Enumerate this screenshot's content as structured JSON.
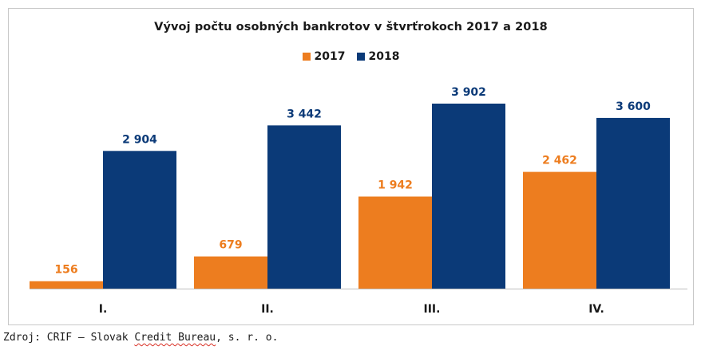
{
  "chart_data": {
    "type": "bar",
    "title": "Vývoj počtu osobných bankrotov v štvrťrokoch 2017 a 2018",
    "categories": [
      "I.",
      "II.",
      "III.",
      "IV."
    ],
    "series": [
      {
        "name": "2017",
        "color": "#ED7D1F",
        "values": [
          156,
          679,
          1942,
          2462
        ],
        "labels": [
          "156",
          "679",
          "1 942",
          "2 462"
        ]
      },
      {
        "name": "2018",
        "color": "#0B3A78",
        "values": [
          2904,
          3442,
          3902,
          3600
        ],
        "labels": [
          "2 904",
          "3 442",
          "3 902",
          "3 600"
        ]
      }
    ],
    "legend_position": "top-center",
    "grid": false,
    "ylim": [
      0,
      4200
    ]
  },
  "source": {
    "prefix": "Zdroj: CRIF – Slovak ",
    "underlined": "Credit Bureau",
    "suffix": ", s. r. o."
  }
}
